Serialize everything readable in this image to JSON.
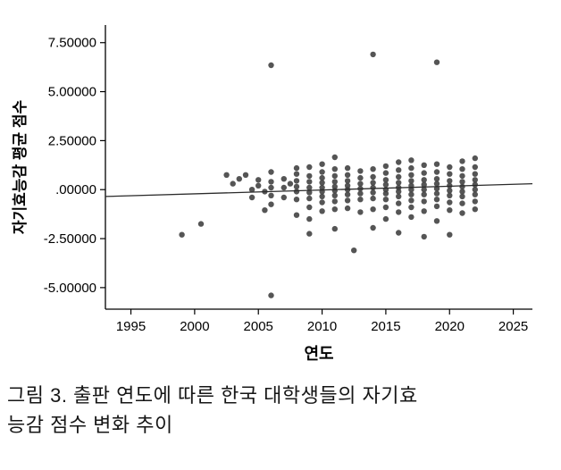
{
  "figure": {
    "caption_lines": [
      "그림 3. 출판 연도에 따른 한국 대학생들의 자기효",
      "능감 점수 변화 추이"
    ]
  },
  "chart_data": {
    "type": "scatter",
    "title": "",
    "xlabel": "연도",
    "ylabel": "자기효능감 평균 점수",
    "xlim": [
      1993,
      2026.5
    ],
    "ylim": [
      -6.1,
      8.4
    ],
    "grid": false,
    "legend": "none",
    "x_tick_values": [
      1995,
      2000,
      2005,
      2010,
      2015,
      2020,
      2025
    ],
    "x_tick_labels": [
      "1995",
      "2000",
      "2005",
      "2010",
      "2015",
      "2020",
      "2025"
    ],
    "y_tick_values": [
      7.5,
      5.0,
      2.5,
      0.0,
      -2.5,
      -5.0
    ],
    "y_tick_labels": [
      "7.50000",
      "5.00000",
      "2.50000",
      ".00000",
      "-2.50000",
      "-5.00000"
    ],
    "point_color": "#3d3d3d",
    "line_color": "#2b2b2b",
    "axis_color": "#000000",
    "fit_line": {
      "x": [
        1993,
        2026.5
      ],
      "y": [
        -0.35,
        0.3
      ]
    },
    "points": [
      [
        1999,
        -2.3
      ],
      [
        2000.5,
        -1.75
      ],
      [
        2002.5,
        0.75
      ],
      [
        2003,
        0.3
      ],
      [
        2003.5,
        0.55
      ],
      [
        2004,
        0.75
      ],
      [
        2004.5,
        0.0
      ],
      [
        2004.5,
        -0.4
      ],
      [
        2005,
        0.5
      ],
      [
        2005,
        0.2
      ],
      [
        2005.5,
        -0.1
      ],
      [
        2005.5,
        -1.05
      ],
      [
        2006,
        6.35
      ],
      [
        2006,
        0.9
      ],
      [
        2006,
        0.4
      ],
      [
        2006,
        0.1
      ],
      [
        2006,
        -0.3
      ],
      [
        2006,
        -0.75
      ],
      [
        2006,
        -5.4
      ],
      [
        2007,
        0.55
      ],
      [
        2007,
        0.1
      ],
      [
        2007,
        -0.4
      ],
      [
        2007.5,
        0.3
      ],
      [
        2008,
        1.1
      ],
      [
        2008,
        0.8
      ],
      [
        2008,
        0.45
      ],
      [
        2008,
        0.15
      ],
      [
        2008,
        -0.1
      ],
      [
        2008,
        -0.5
      ],
      [
        2008,
        -1.3
      ],
      [
        2009,
        1.15
      ],
      [
        2009,
        0.7
      ],
      [
        2009,
        0.4
      ],
      [
        2009,
        0.1
      ],
      [
        2009,
        -0.15
      ],
      [
        2009,
        -0.45
      ],
      [
        2009,
        -0.9
      ],
      [
        2009,
        -1.5
      ],
      [
        2009,
        -2.25
      ],
      [
        2010,
        1.3
      ],
      [
        2010,
        0.9
      ],
      [
        2010,
        0.6
      ],
      [
        2010,
        0.35
      ],
      [
        2010,
        0.1
      ],
      [
        2010,
        -0.1
      ],
      [
        2010,
        -0.35
      ],
      [
        2010,
        -0.65
      ],
      [
        2010,
        -1.1
      ],
      [
        2011,
        1.65
      ],
      [
        2011,
        1.05
      ],
      [
        2011,
        0.7
      ],
      [
        2011,
        0.4
      ],
      [
        2011,
        0.15
      ],
      [
        2011,
        -0.05
      ],
      [
        2011,
        -0.3
      ],
      [
        2011,
        -0.6
      ],
      [
        2011,
        -1.0
      ],
      [
        2011,
        -2.0
      ],
      [
        2012,
        1.1
      ],
      [
        2012,
        0.75
      ],
      [
        2012,
        0.45
      ],
      [
        2012,
        0.2
      ],
      [
        2012,
        0.0
      ],
      [
        2012,
        -0.25
      ],
      [
        2012,
        -0.55
      ],
      [
        2012,
        -0.95
      ],
      [
        2012.5,
        -3.1
      ],
      [
        2013,
        0.95
      ],
      [
        2013,
        0.6
      ],
      [
        2013,
        0.3
      ],
      [
        2013,
        0.05
      ],
      [
        2013,
        -0.2
      ],
      [
        2013,
        -0.5
      ],
      [
        2013,
        -1.15
      ],
      [
        2014,
        6.9
      ],
      [
        2014,
        1.05
      ],
      [
        2014,
        0.65
      ],
      [
        2014,
        0.35
      ],
      [
        2014,
        0.1
      ],
      [
        2014,
        -0.15
      ],
      [
        2014,
        -0.45
      ],
      [
        2014,
        -1.0
      ],
      [
        2014,
        -1.95
      ],
      [
        2015,
        1.2
      ],
      [
        2015,
        0.85
      ],
      [
        2015,
        0.5
      ],
      [
        2015,
        0.25
      ],
      [
        2015,
        0.0
      ],
      [
        2015,
        -0.2
      ],
      [
        2015,
        -0.5
      ],
      [
        2015,
        -0.9
      ],
      [
        2015,
        -1.5
      ],
      [
        2016,
        1.4
      ],
      [
        2016,
        1.0
      ],
      [
        2016,
        0.65
      ],
      [
        2016,
        0.35
      ],
      [
        2016,
        0.1
      ],
      [
        2016,
        -0.1
      ],
      [
        2016,
        -0.35
      ],
      [
        2016,
        -0.7
      ],
      [
        2016,
        -1.15
      ],
      [
        2016,
        -2.2
      ],
      [
        2017,
        1.5
      ],
      [
        2017,
        1.1
      ],
      [
        2017,
        0.75
      ],
      [
        2017,
        0.45
      ],
      [
        2017,
        0.2
      ],
      [
        2017,
        0.0
      ],
      [
        2017,
        -0.25
      ],
      [
        2017,
        -0.55
      ],
      [
        2017,
        -0.9
      ],
      [
        2017,
        -1.4
      ],
      [
        2018,
        1.25
      ],
      [
        2018,
        0.85
      ],
      [
        2018,
        0.5
      ],
      [
        2018,
        0.25
      ],
      [
        2018,
        0.0
      ],
      [
        2018,
        -0.25
      ],
      [
        2018,
        -0.6
      ],
      [
        2018,
        -1.1
      ],
      [
        2018,
        -2.4
      ],
      [
        2019,
        6.5
      ],
      [
        2019,
        1.3
      ],
      [
        2019,
        0.9
      ],
      [
        2019,
        0.55
      ],
      [
        2019,
        0.3
      ],
      [
        2019,
        0.05
      ],
      [
        2019,
        -0.2
      ],
      [
        2019,
        -0.5
      ],
      [
        2019,
        -0.85
      ],
      [
        2019,
        -1.6
      ],
      [
        2020,
        1.15
      ],
      [
        2020,
        0.8
      ],
      [
        2020,
        0.45
      ],
      [
        2020,
        0.2
      ],
      [
        2020,
        -0.05
      ],
      [
        2020,
        -0.3
      ],
      [
        2020,
        -0.65
      ],
      [
        2020,
        -1.05
      ],
      [
        2020,
        -2.3
      ],
      [
        2021,
        1.45
      ],
      [
        2021,
        1.05
      ],
      [
        2021,
        0.7
      ],
      [
        2021,
        0.4
      ],
      [
        2021,
        0.15
      ],
      [
        2021,
        -0.1
      ],
      [
        2021,
        -0.35
      ],
      [
        2021,
        -0.7
      ],
      [
        2021,
        -1.2
      ],
      [
        2022,
        1.6
      ],
      [
        2022,
        1.15
      ],
      [
        2022,
        0.8
      ],
      [
        2022,
        0.5
      ],
      [
        2022,
        0.25
      ],
      [
        2022,
        0.0
      ],
      [
        2022,
        -0.25
      ],
      [
        2022,
        -0.6
      ],
      [
        2022,
        -1.0
      ]
    ]
  }
}
